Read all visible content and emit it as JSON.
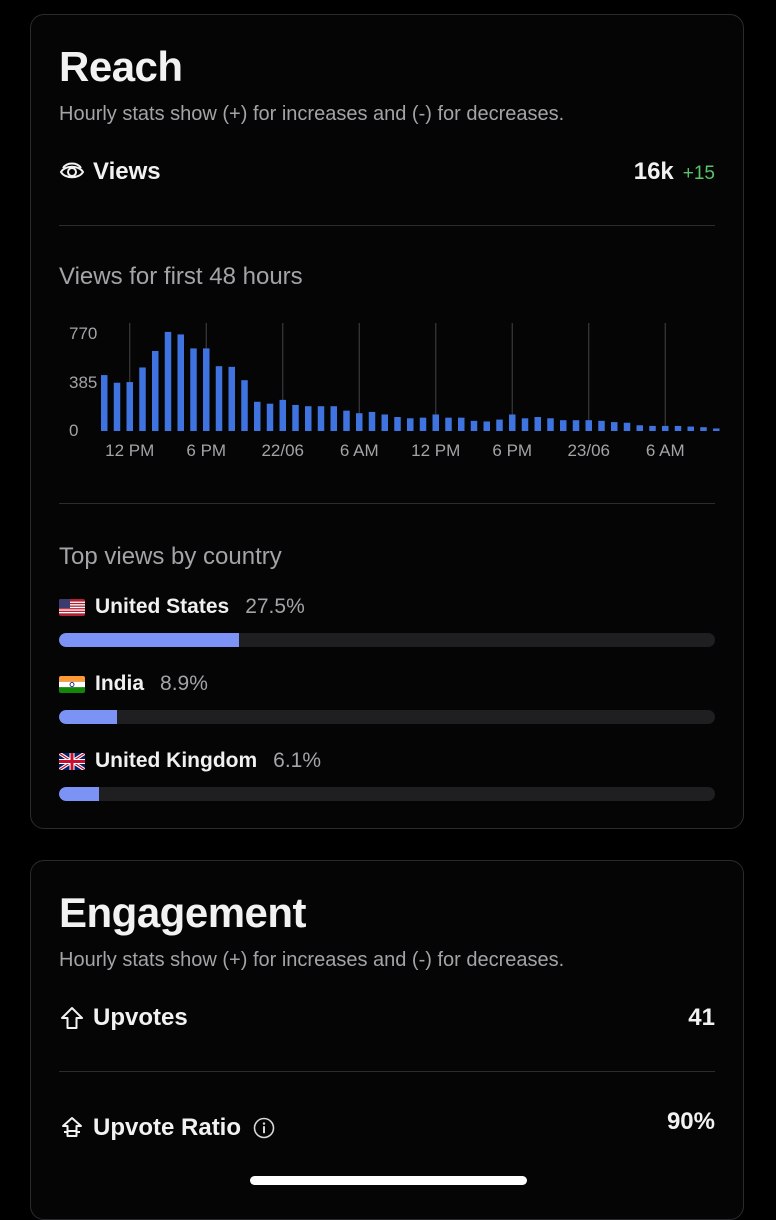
{
  "reach": {
    "title": "Reach",
    "subtitle": "Hourly stats show (+) for increases and (-) for decreases.",
    "views": {
      "label": "Views",
      "value": "16k",
      "delta": "+15",
      "icon": "eye-icon"
    },
    "chart_title": "Views for first 48 hours",
    "countries_title": "Top views by country",
    "countries": [
      {
        "name": "United States",
        "percent": "27.5%",
        "share": 0.275,
        "flag": "flag-us"
      },
      {
        "name": "India",
        "percent": "8.9%",
        "share": 0.089,
        "flag": "flag-in"
      },
      {
        "name": "United Kingdom",
        "percent": "6.1%",
        "share": 0.061,
        "flag": "flag-gb"
      }
    ]
  },
  "engagement": {
    "title": "Engagement",
    "subtitle": "Hourly stats show (+) for increases and (-) for decreases.",
    "upvotes": {
      "label": "Upvotes",
      "value": "41",
      "icon": "arrow-up-outline-icon"
    },
    "upvote_ratio": {
      "label": "Upvote Ratio",
      "value": "90%",
      "icon": "double-arrow-up-icon",
      "info_icon": "info-icon"
    }
  },
  "colors": {
    "bar": "#3f74e0",
    "progress_fill": "#7b93f5",
    "positive_delta": "#5ac36a",
    "background": "#000000"
  },
  "chart_data": {
    "type": "bar",
    "title": "Views for first 48 hours",
    "ytick_labels": [
      "770",
      "385",
      "0"
    ],
    "yticks": [
      770,
      385,
      0
    ],
    "ylim": [
      0,
      850
    ],
    "xtick_labels": [
      "12 PM",
      "6 PM",
      "22/06",
      "6 AM",
      "12 PM",
      "6 PM",
      "23/06",
      "6 AM"
    ],
    "xtick_bar_index": [
      2,
      8,
      14,
      20,
      26,
      32,
      38,
      44
    ],
    "values": [
      440,
      380,
      385,
      500,
      630,
      780,
      760,
      650,
      650,
      510,
      505,
      400,
      230,
      215,
      245,
      205,
      195,
      195,
      195,
      160,
      140,
      150,
      130,
      110,
      100,
      105,
      130,
      105,
      105,
      80,
      75,
      90,
      130,
      100,
      110,
      100,
      85,
      85,
      85,
      80,
      70,
      65,
      45,
      40,
      40,
      40,
      35,
      30,
      20
    ],
    "grid": "vertical lines at x ticks"
  }
}
